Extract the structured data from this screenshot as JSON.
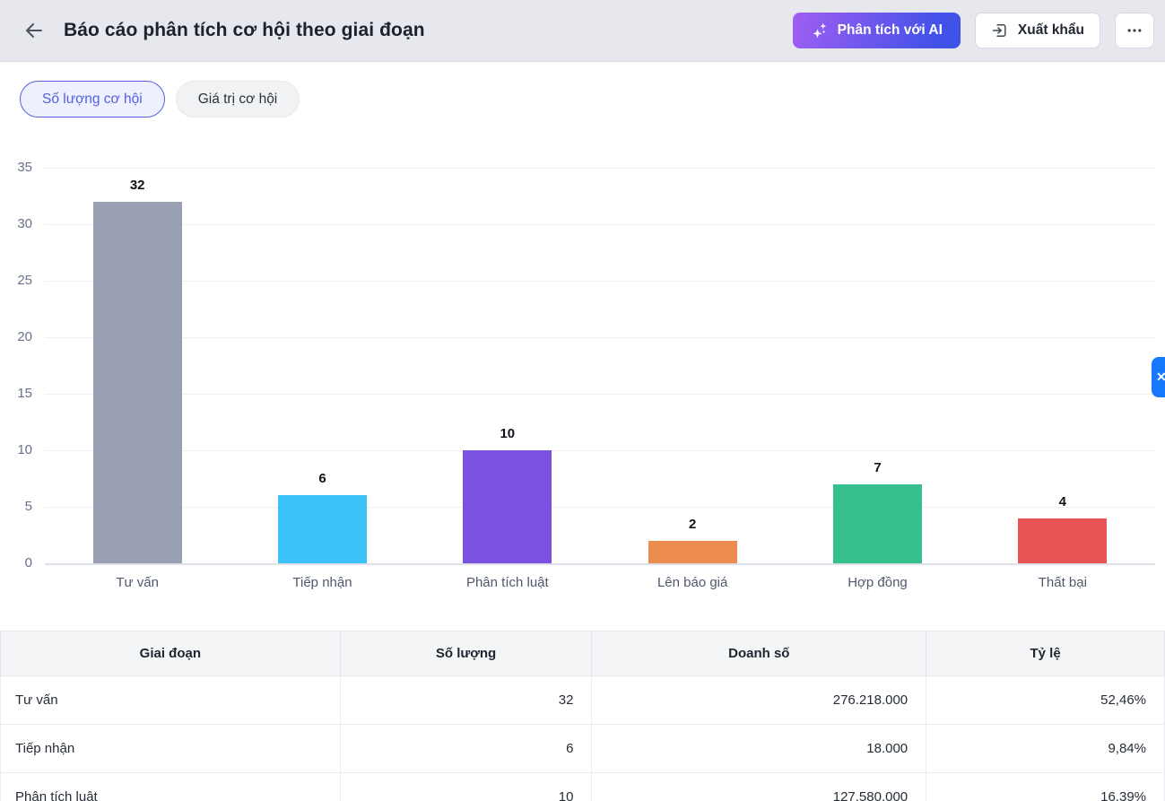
{
  "header": {
    "title": "Báo cáo phân tích cơ hội theo giai đoạn",
    "ai_button_label": "Phân tích với AI",
    "export_button_label": "Xuất khẩu"
  },
  "toggles": [
    {
      "label": "Số lượng cơ hội",
      "active": true
    },
    {
      "label": "Giá trị cơ hội",
      "active": false
    }
  ],
  "chart_data": {
    "type": "bar",
    "title": "",
    "xlabel": "",
    "ylabel": "",
    "categories": [
      "Tư vấn",
      "Tiếp nhận",
      "Phân tích luật",
      "Lên báo giá",
      "Hợp đồng",
      "Thất bại"
    ],
    "values": [
      32,
      6,
      10,
      2,
      7,
      4
    ],
    "bar_colors": [
      "#99a0b4",
      "#3dc2f7",
      "#7c53e0",
      "#ec8c4e",
      "#35c08d",
      "#e85455"
    ],
    "ylim": [
      0,
      35
    ],
    "ytick_step": 5,
    "grid": true,
    "legend": false,
    "value_labels": true
  },
  "table": {
    "headers": [
      "Giai đoạn",
      "Số lượng",
      "Doanh số",
      "Tỷ lệ"
    ],
    "rows": [
      {
        "stage": "Tư vấn",
        "count": "32",
        "revenue": "276.218.000",
        "rate": "52,46%"
      },
      {
        "stage": "Tiếp nhận",
        "count": "6",
        "revenue": "18.000",
        "rate": "9,84%"
      },
      {
        "stage": "Phân tích luật",
        "count": "10",
        "revenue": "127.580.000",
        "rate": "16,39%"
      }
    ]
  },
  "side_tab": {
    "icon": "✕"
  },
  "colors": {
    "accent": "#5560dd",
    "ai_gradient_from": "#a15ef2",
    "ai_gradient_to": "#4152e8",
    "side_tab": "#1677ff",
    "appbar_bg": "#e6e8ed"
  }
}
